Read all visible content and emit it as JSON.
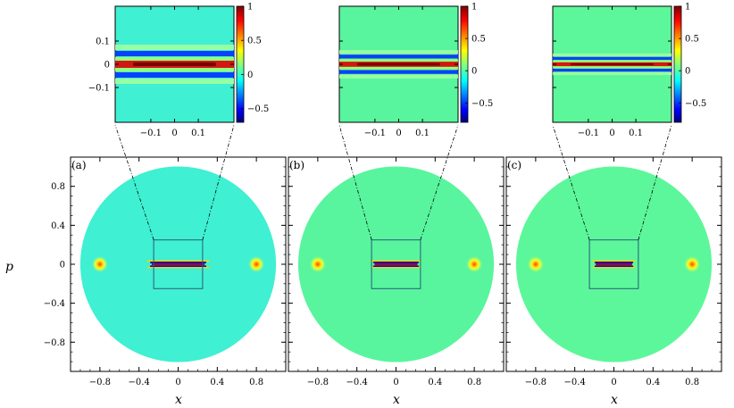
{
  "chart_data": {
    "type": "heatmap",
    "description_axes": {
      "xlabel": "x",
      "ylabel": "p"
    },
    "colormap": "jet",
    "panels": [
      {
        "label": "(a)",
        "main": {
          "xlim": [
            -1.1,
            1.1
          ],
          "ylim": [
            -1.1,
            1.1
          ],
          "xticks": [
            "−0.8",
            "−0.4",
            "0",
            "0.4",
            "0.8"
          ],
          "yticks": [
            "0.8",
            "0.4",
            "0",
            "−0.4",
            "−0.8"
          ],
          "disk_radius": 1.0,
          "peaks_x": [
            -0.8,
            0.8
          ],
          "zoom_box": [
            -0.25,
            0.25,
            -0.25,
            0.25
          ],
          "background": "#3ff0d2"
        },
        "inset": {
          "xlim": [
            -0.25,
            0.25
          ],
          "ylim": [
            -0.25,
            0.25
          ],
          "xticks": [
            "−0.1",
            "0",
            "0.1"
          ],
          "yticks": [
            "0.1",
            "0",
            "−0.1"
          ],
          "colorbar_ticks": [
            "1",
            "0.5",
            "0",
            "−0.5"
          ],
          "colorbar_range": [
            -0.7,
            1.0
          ],
          "background": "#3ff0d2"
        }
      },
      {
        "label": "(b)",
        "main": {
          "xlim": [
            -1.1,
            1.1
          ],
          "ylim": [
            -1.1,
            1.1
          ],
          "xticks": [
            "−0.8",
            "−0.4",
            "0",
            "0.4",
            "0.8"
          ],
          "disk_radius": 1.0,
          "peaks_x": [
            -0.8,
            0.8
          ],
          "zoom_box": [
            -0.25,
            0.25,
            -0.25,
            0.25
          ],
          "background": "#58f59e"
        },
        "inset": {
          "xlim": [
            -0.25,
            0.25
          ],
          "ylim": [
            -0.25,
            0.25
          ],
          "xticks": [
            "−0.1",
            "0",
            "0.1"
          ],
          "colorbar_ticks": [
            "1",
            "0.5",
            "0",
            "−0.5"
          ],
          "colorbar_range": [
            -0.8,
            1.0
          ],
          "background": "#58f59e"
        }
      },
      {
        "label": "(c)",
        "main": {
          "xlim": [
            -1.1,
            1.1
          ],
          "ylim": [
            -1.1,
            1.1
          ],
          "xticks": [
            "−0.8",
            "−0.4",
            "0",
            "0.4",
            "0.8"
          ],
          "disk_radius": 1.0,
          "peaks_x": [
            -0.8,
            0.8
          ],
          "zoom_box": [
            -0.25,
            0.25,
            -0.25,
            0.25
          ],
          "background": "#5cf79a"
        },
        "inset": {
          "xlim": [
            -0.25,
            0.25
          ],
          "ylim": [
            -0.25,
            0.25
          ],
          "xticks": [
            "−0.1",
            "0",
            "0.1"
          ],
          "colorbar_ticks": [
            "1",
            "0.5",
            "0",
            "−0.5"
          ],
          "colorbar_range": [
            -0.8,
            1.0
          ],
          "background": "#5cf79a"
        }
      }
    ]
  }
}
